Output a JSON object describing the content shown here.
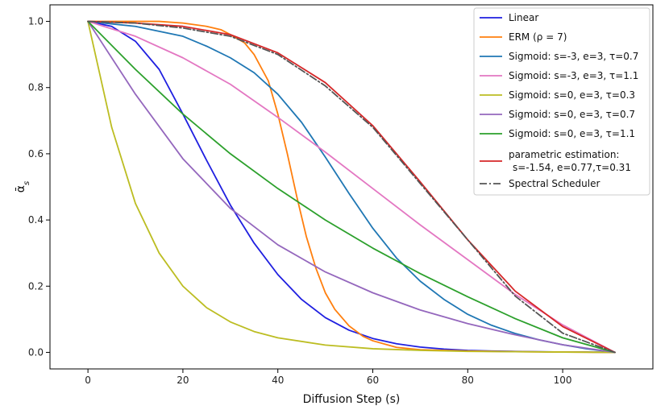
{
  "chart_data": {
    "type": "line",
    "title": "",
    "xlabel": "Diffusion Step (s)",
    "ylabel": "ᾱ",
    "ylabel_subscript": "s",
    "xlim": [
      -8,
      119
    ],
    "ylim": [
      -0.05,
      1.05
    ],
    "xticks": [
      0,
      20,
      40,
      60,
      80,
      100
    ],
    "yticks": [
      0.0,
      0.2,
      0.4,
      0.6,
      0.8,
      1.0
    ],
    "xtick_labels": [
      "0",
      "20",
      "40",
      "60",
      "80",
      "100"
    ],
    "ytick_labels": [
      "0.0",
      "0.2",
      "0.4",
      "0.6",
      "0.8",
      "1.0"
    ],
    "grid": false,
    "legend_position": "top-right",
    "x_range": [
      0,
      111
    ],
    "series": [
      {
        "name": "Linear",
        "color": "#1f1fe0",
        "dash": "solid",
        "x": [
          0,
          5,
          10,
          15,
          20,
          25,
          30,
          35,
          40,
          45,
          50,
          55,
          60,
          65,
          70,
          75,
          80,
          85,
          90,
          95,
          100,
          105,
          111
        ],
        "values": [
          1.0,
          0.985,
          0.94,
          0.855,
          0.72,
          0.58,
          0.445,
          0.33,
          0.235,
          0.16,
          0.105,
          0.067,
          0.042,
          0.026,
          0.016,
          0.01,
          0.006,
          0.004,
          0.003,
          0.002,
          0.001,
          0.001,
          0.0
        ]
      },
      {
        "name": "ERM (ρ = 7)",
        "color": "#ff7f0e",
        "dash": "solid",
        "x": [
          0,
          5,
          10,
          15,
          20,
          25,
          28,
          30,
          33,
          35,
          38,
          40,
          42,
          44,
          46,
          48,
          50,
          52,
          55,
          58,
          60,
          65,
          70,
          80,
          90,
          100,
          111
        ],
        "values": [
          1.0,
          1.0,
          1.0,
          1.0,
          0.995,
          0.985,
          0.975,
          0.96,
          0.935,
          0.9,
          0.82,
          0.72,
          0.6,
          0.47,
          0.35,
          0.255,
          0.18,
          0.13,
          0.08,
          0.048,
          0.035,
          0.015,
          0.008,
          0.004,
          0.002,
          0.001,
          0.0
        ]
      },
      {
        "name": "Sigmoid: s=-3, e=3, τ=0.7",
        "color": "#1f77b4",
        "dash": "solid",
        "x": [
          0,
          10,
          20,
          25,
          30,
          35,
          40,
          45,
          50,
          55,
          60,
          65,
          70,
          75,
          80,
          85,
          90,
          95,
          100,
          105,
          111
        ],
        "values": [
          1.0,
          0.985,
          0.955,
          0.925,
          0.89,
          0.845,
          0.78,
          0.695,
          0.59,
          0.48,
          0.375,
          0.285,
          0.215,
          0.16,
          0.115,
          0.082,
          0.057,
          0.038,
          0.023,
          0.011,
          0.0
        ]
      },
      {
        "name": "Sigmoid: s=-3, e=3, τ=1.1",
        "color": "#e377c2",
        "dash": "solid",
        "x": [
          0,
          10,
          20,
          30,
          40,
          50,
          60,
          70,
          80,
          90,
          100,
          111
        ],
        "values": [
          1.0,
          0.955,
          0.89,
          0.81,
          0.71,
          0.605,
          0.495,
          0.385,
          0.28,
          0.175,
          0.083,
          0.0
        ]
      },
      {
        "name": "Sigmoid: s=0, e=3, τ=0.3",
        "color": "#bcbd22",
        "dash": "solid",
        "x": [
          0,
          5,
          10,
          15,
          20,
          25,
          30,
          35,
          40,
          50,
          60,
          70,
          80,
          90,
          100,
          111
        ],
        "values": [
          1.0,
          0.68,
          0.45,
          0.3,
          0.2,
          0.135,
          0.092,
          0.063,
          0.044,
          0.022,
          0.011,
          0.006,
          0.003,
          0.002,
          0.001,
          0.0
        ]
      },
      {
        "name": "Sigmoid: s=0, e=3, τ=0.7",
        "color": "#9467bd",
        "dash": "solid",
        "x": [
          0,
          10,
          20,
          30,
          40,
          50,
          60,
          70,
          80,
          90,
          100,
          111
        ],
        "values": [
          1.0,
          0.78,
          0.585,
          0.435,
          0.325,
          0.243,
          0.18,
          0.128,
          0.087,
          0.053,
          0.023,
          0.0
        ]
      },
      {
        "name": "Sigmoid: s=0, e=3, τ=1.1",
        "color": "#2ca02c",
        "dash": "solid",
        "x": [
          0,
          10,
          20,
          30,
          40,
          50,
          60,
          70,
          80,
          90,
          100,
          111
        ],
        "values": [
          1.0,
          0.855,
          0.72,
          0.6,
          0.495,
          0.4,
          0.315,
          0.238,
          0.168,
          0.102,
          0.044,
          0.0
        ]
      },
      {
        "name": "parametric estimation:",
        "name_line2": "s=-1.54, e=0.77,τ=0.31",
        "color": "#d62728",
        "dash": "solid",
        "x": [
          0,
          10,
          20,
          30,
          40,
          50,
          60,
          70,
          80,
          90,
          100,
          111
        ],
        "values": [
          1.0,
          0.995,
          0.985,
          0.96,
          0.905,
          0.815,
          0.685,
          0.515,
          0.34,
          0.185,
          0.078,
          0.0
        ]
      },
      {
        "name": "Spectral Scheduler",
        "color": "#555555",
        "dash": "dashdot",
        "x": [
          0,
          10,
          20,
          30,
          40,
          50,
          60,
          70,
          80,
          90,
          100,
          111
        ],
        "values": [
          1.0,
          0.995,
          0.98,
          0.955,
          0.9,
          0.805,
          0.68,
          0.51,
          0.34,
          0.17,
          0.058,
          0.0
        ]
      }
    ]
  }
}
